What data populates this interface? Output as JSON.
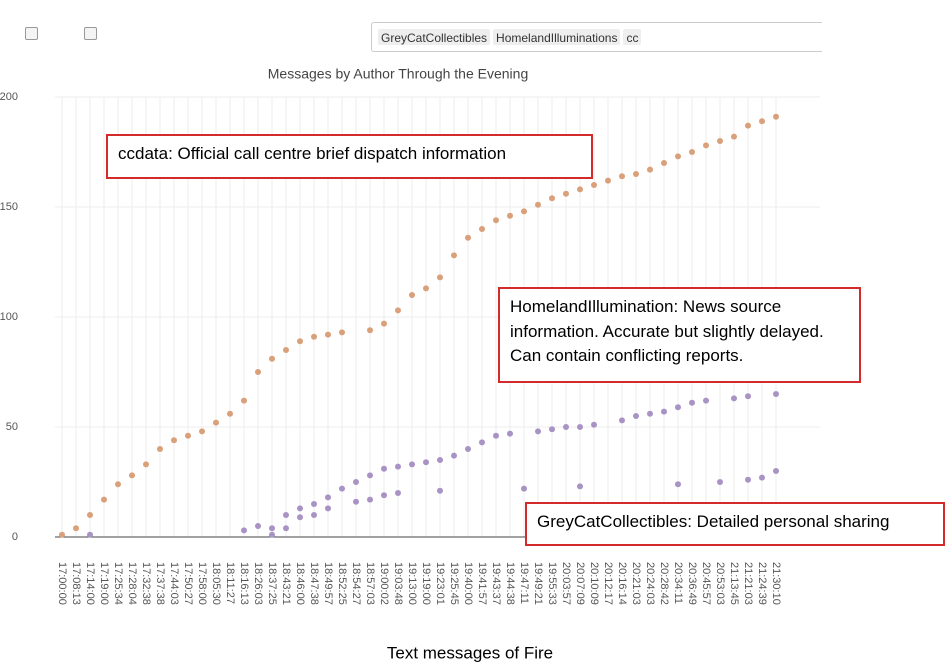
{
  "chart_data": {
    "type": "scatter",
    "title": "Messages by Author Through the Evening",
    "x_label": "Text messages of Fire",
    "categories": [
      "17:00:00",
      "17:08:13",
      "17:14:00",
      "17:19:00",
      "17:25:34",
      "17:28:04",
      "17:32:38",
      "17:37:38",
      "17:44:03",
      "17:50:27",
      "17:58:00",
      "18:05:30",
      "18:11:27",
      "18:16:13",
      "18:26:03",
      "18:37:25",
      "18:43:21",
      "18:46:00",
      "18:47:38",
      "18:49:57",
      "18:52:25",
      "18:54:27",
      "18:57:03",
      "19:00:02",
      "19:03:48",
      "19:13:00",
      "19:19:00",
      "19:23:01",
      "19:25:45",
      "19:40:00",
      "19:41:57",
      "19:43:37",
      "19:44:38",
      "19:47:11",
      "19:49:21",
      "19:55:33",
      "20:03:57",
      "20:07:09",
      "20:10:09",
      "20:12:17",
      "20:16:14",
      "20:21:03",
      "20:24:03",
      "20:28:42",
      "20:34:11",
      "20:36:49",
      "20:45:57",
      "20:53:03",
      "21:13:45",
      "21:21:03",
      "21:24:39",
      "21:30:10"
    ],
    "series": [
      {
        "name": "GreyCatCollectibles",
        "color": "#a893c4",
        "values": [
          null,
          null,
          1,
          null,
          null,
          null,
          null,
          null,
          null,
          null,
          null,
          null,
          null,
          null,
          null,
          1,
          4,
          9,
          10,
          13,
          null,
          16,
          17,
          19,
          20,
          null,
          null,
          21,
          null,
          null,
          null,
          null,
          null,
          22,
          null,
          null,
          null,
          23,
          null,
          null,
          null,
          null,
          null,
          null,
          24,
          null,
          null,
          25,
          null,
          26,
          27,
          30
        ]
      },
      {
        "name": "HomelandIlluminations",
        "color": "#a893c4",
        "values": [
          null,
          null,
          null,
          null,
          null,
          null,
          null,
          null,
          null,
          null,
          null,
          null,
          null,
          3,
          5,
          4,
          10,
          13,
          15,
          18,
          22,
          25,
          28,
          31,
          32,
          33,
          34,
          35,
          37,
          40,
          43,
          46,
          47,
          null,
          48,
          49,
          50,
          50,
          51,
          null,
          53,
          55,
          56,
          57,
          59,
          61,
          62,
          null,
          63,
          64,
          null,
          65
        ]
      },
      {
        "name": "cc",
        "color": "#d9a07a",
        "values": [
          1,
          4,
          10,
          17,
          24,
          28,
          33,
          40,
          44,
          46,
          48,
          52,
          56,
          62,
          75,
          81,
          85,
          89,
          91,
          92,
          93,
          null,
          94,
          97,
          103,
          110,
          113,
          118,
          128,
          136,
          140,
          144,
          146,
          148,
          151,
          154,
          156,
          158,
          160,
          162,
          164,
          165,
          167,
          170,
          173,
          175,
          178,
          180,
          182,
          187,
          189,
          191
        ]
      }
    ],
    "ylim": [
      0,
      200
    ],
    "yticks": [
      0,
      50,
      100,
      150,
      200
    ],
    "grid": true,
    "annotations": [
      "ccdata: Official call centre brief dispatch information",
      "HomelandIllumination: News source information. Accurate but slightly delayed. Can contain conflicting reports.",
      "GreyCatCollectibles: Detailed personal sharing"
    ]
  }
}
